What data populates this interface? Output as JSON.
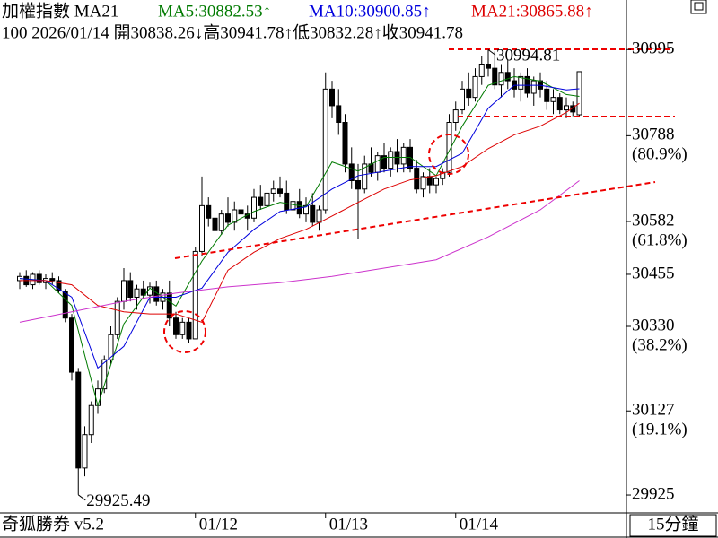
{
  "chart_data": {
    "type": "candlestick",
    "header": {
      "name": "加權指數 MA21",
      "ma5": "MA5:30882.53↑",
      "ma10": "MA10:30900.85↑",
      "ma21": "MA21:30865.88↑",
      "info": "100 2026/01/14 開30838.26↓高30941.78↑低30832.28↑收30941.78"
    },
    "footer_left": "奇狐勝券 v5.2",
    "period": "15分鐘",
    "ylim": [
      29882,
      31114
    ],
    "yticks": [
      30995,
      30788,
      30582,
      30455,
      30330,
      30127,
      29925
    ],
    "fib_labels": [
      {
        "value": 30788,
        "label": "(80.9%)"
      },
      {
        "value": 30582,
        "label": "(61.8%)"
      },
      {
        "value": 30330,
        "label": "(38.2%)"
      },
      {
        "value": 30127,
        "label": "(19.1%)"
      }
    ],
    "xticks": [
      {
        "value": 27,
        "label": "01/12"
      },
      {
        "value": 47,
        "label": "01/13"
      },
      {
        "value": 67,
        "label": "01/14"
      }
    ],
    "annotations": [
      {
        "bar": 72,
        "value": 30994.81,
        "label": "30994.81"
      },
      {
        "bar": 9,
        "value": 29925.49,
        "label": "29925.49"
      }
    ],
    "up_color": "#ffffff",
    "down_color": "#000000",
    "candles": [
      [
        30440,
        30460,
        30420,
        30450
      ],
      [
        30450,
        30465,
        30425,
        30430
      ],
      [
        30430,
        30460,
        30420,
        30455
      ],
      [
        30455,
        30465,
        30430,
        30435
      ],
      [
        30435,
        30455,
        30420,
        30445
      ],
      [
        30445,
        30460,
        30430,
        30440
      ],
      [
        30440,
        30450,
        30410,
        30415
      ],
      [
        30415,
        30420,
        30340,
        30350
      ],
      [
        30350,
        30360,
        30200,
        30220
      ],
      [
        30220,
        30230,
        29925.49,
        29990
      ],
      [
        29990,
        30090,
        29970,
        30070
      ],
      [
        30070,
        30150,
        30050,
        30140
      ],
      [
        30140,
        30200,
        30120,
        30180
      ],
      [
        30180,
        30260,
        30170,
        30250
      ],
      [
        30250,
        30330,
        30240,
        30310
      ],
      [
        30310,
        30400,
        30300,
        30390
      ],
      [
        30390,
        30470,
        30370,
        30440
      ],
      [
        30440,
        30460,
        30390,
        30400
      ],
      [
        30400,
        30430,
        30370,
        30420
      ],
      [
        30420,
        30440,
        30395,
        30405
      ],
      [
        30405,
        30435,
        30385,
        30425
      ],
      [
        30425,
        30440,
        30380,
        30390
      ],
      [
        30390,
        30420,
        30370,
        30410
      ],
      [
        30410,
        30440,
        30330,
        30350
      ],
      [
        30350,
        30365,
        30300,
        30310
      ],
      [
        30310,
        30350,
        30300,
        30340
      ],
      [
        30340,
        30350,
        30290,
        30300
      ],
      [
        30300,
        30520,
        30300,
        30510
      ],
      [
        30510,
        30690,
        30500,
        30620
      ],
      [
        30620,
        30640,
        30570,
        30590
      ],
      [
        30590,
        30620,
        30540,
        30560
      ],
      [
        30560,
        30610,
        30550,
        30600
      ],
      [
        30600,
        30640,
        30570,
        30580
      ],
      [
        30580,
        30630,
        30560,
        30610
      ],
      [
        30610,
        30640,
        30590,
        30600
      ],
      [
        30600,
        30620,
        30560,
        30590
      ],
      [
        30590,
        30660,
        30580,
        30640
      ],
      [
        30640,
        30670,
        30610,
        30620
      ],
      [
        30620,
        30660,
        30600,
        30650
      ],
      [
        30650,
        30680,
        30630,
        30660
      ],
      [
        30660,
        30690,
        30640,
        30650
      ],
      [
        30650,
        30680,
        30600,
        30610
      ],
      [
        30610,
        30640,
        30580,
        30630
      ],
      [
        30630,
        30660,
        30590,
        30600
      ],
      [
        30600,
        30640,
        30580,
        30620
      ],
      [
        30620,
        30650,
        30570,
        30580
      ],
      [
        30580,
        30620,
        30560,
        30610
      ],
      [
        30610,
        30940,
        30600,
        30900
      ],
      [
        30900,
        30920,
        30830,
        30860
      ],
      [
        30860,
        30900,
        30790,
        30820
      ],
      [
        30820,
        30840,
        30700,
        30720
      ],
      [
        30720,
        30760,
        30660,
        30680
      ],
      [
        30680,
        30720,
        30540,
        30660
      ],
      [
        30660,
        30740,
        30650,
        30720
      ],
      [
        30720,
        30760,
        30690,
        30700
      ],
      [
        30700,
        30750,
        30680,
        30740
      ],
      [
        30740,
        30770,
        30700,
        30710
      ],
      [
        30710,
        30760,
        30690,
        30750
      ],
      [
        30750,
        30780,
        30700,
        30720
      ],
      [
        30720,
        30770,
        30700,
        30760
      ],
      [
        30760,
        30780,
        30700,
        30710
      ],
      [
        30710,
        30730,
        30650,
        30660
      ],
      [
        30660,
        30700,
        30640,
        30690
      ],
      [
        30690,
        30710,
        30650,
        30670
      ],
      [
        30670,
        30690,
        30650,
        30685
      ],
      [
        30685,
        30710,
        30670,
        30700
      ],
      [
        30700,
        30840,
        30690,
        30820
      ],
      [
        30820,
        30870,
        30800,
        30850
      ],
      [
        30850,
        30920,
        30840,
        30900
      ],
      [
        30900,
        30940,
        30860,
        30880
      ],
      [
        30880,
        30950,
        30870,
        30930
      ],
      [
        30930,
        30980,
        30910,
        30960
      ],
      [
        30960,
        30994.81,
        30930,
        30950
      ],
      [
        30950,
        30990,
        30900,
        30910
      ],
      [
        30910,
        30960,
        30880,
        30940
      ],
      [
        30940,
        30970,
        30900,
        30920
      ],
      [
        30920,
        30950,
        30880,
        30900
      ],
      [
        30900,
        30940,
        30870,
        30930
      ],
      [
        30930,
        30950,
        30880,
        30890
      ],
      [
        30890,
        30930,
        30860,
        30920
      ],
      [
        30920,
        30940,
        30880,
        30900
      ],
      [
        30900,
        30920,
        30850,
        30870
      ],
      [
        30870,
        30900,
        30840,
        30880
      ],
      [
        30880,
        30890,
        30840,
        30850
      ],
      [
        30850,
        30880,
        30830,
        30860
      ],
      [
        30860,
        30870,
        30835,
        30845
      ],
      [
        30838.26,
        30941.78,
        30832.28,
        30941.78
      ]
    ],
    "series": [
      {
        "name": "MA5",
        "color": "#007a00",
        "x": [
          0,
          4,
          8,
          12,
          16,
          20,
          24,
          28,
          32,
          36,
          40,
          44,
          48,
          52,
          56,
          60,
          64,
          68,
          72,
          76,
          80,
          84,
          86
        ],
        "values": [
          30445,
          30440,
          30380,
          30140,
          30336,
          30422,
          30379,
          30487,
          30573,
          30606,
          30628,
          30617,
          30725,
          30703,
          30736,
          30736,
          30692,
          30811,
          30909,
          30930,
          30919,
          30887,
          30882.53
        ]
      },
      {
        "name": "MA10",
        "color": "#0000dd",
        "x": [
          0,
          4,
          8,
          12,
          16,
          20,
          24,
          28,
          32,
          36,
          40,
          44,
          48,
          52,
          56,
          60,
          64,
          68,
          72,
          76,
          80,
          84,
          86
        ],
        "values": [
          30445,
          30440,
          30400,
          30230,
          30282,
          30400,
          30400,
          30422,
          30508,
          30563,
          30606,
          30617,
          30660,
          30692,
          30703,
          30714,
          30714,
          30746,
          30854,
          30909,
          30909,
          30898,
          30900.85
        ]
      },
      {
        "name": "MA21",
        "color": "#dd0000",
        "x": [
          0,
          4,
          8,
          12,
          16,
          20,
          24,
          28,
          32,
          36,
          40,
          44,
          48,
          52,
          56,
          60,
          64,
          68,
          72,
          76,
          80,
          84,
          86
        ],
        "values": [
          30440,
          30440,
          30430,
          30380,
          30365,
          30360,
          30360,
          30340,
          30465,
          30508,
          30541,
          30563,
          30595,
          30628,
          30660,
          30682,
          30692,
          30714,
          30757,
          30790,
          30811,
          30844,
          30865.88
        ]
      },
      {
        "name": "MA",
        "color": "#cc33cc",
        "x": [
          0,
          8,
          16,
          24,
          32,
          40,
          48,
          56,
          64,
          72,
          80,
          86
        ],
        "values": [
          30340,
          30365,
          30390,
          30410,
          30425,
          30435,
          30450,
          30470,
          30490,
          30545,
          30610,
          30680
        ]
      }
    ]
  }
}
